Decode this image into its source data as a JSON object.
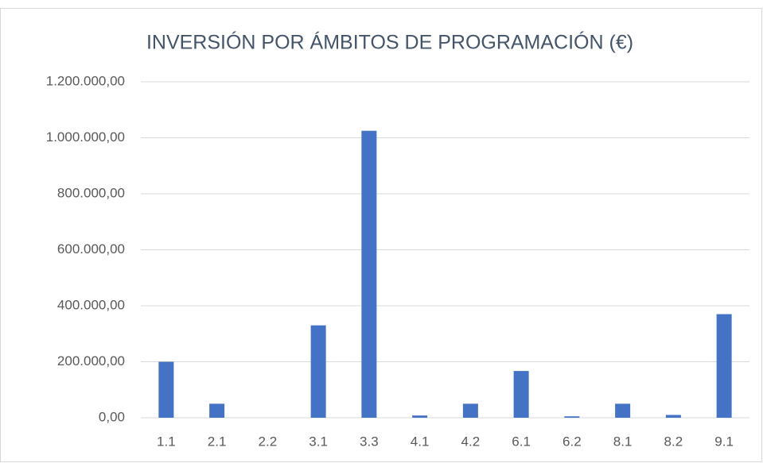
{
  "chart_data": {
    "type": "bar",
    "title": "INVERSIÓN POR ÁMBITOS DE PROGRAMACIÓN (€)",
    "categories": [
      "1.1",
      "2.1",
      "2.2",
      "3.1",
      "3.3",
      "4.1",
      "4.2",
      "6.1",
      "6.2",
      "8.1",
      "8.2",
      "9.1"
    ],
    "values": [
      200000,
      50000,
      0,
      330000,
      1025000,
      8000,
      50000,
      167000,
      5000,
      50000,
      10000,
      370000
    ],
    "color": "#4472c4",
    "ylim": [
      0,
      1200000
    ],
    "yticks": [
      {
        "value": 0,
        "label": "0,00"
      },
      {
        "value": 200000,
        "label": "200.000,00"
      },
      {
        "value": 400000,
        "label": "400.000,00"
      },
      {
        "value": 600000,
        "label": "600.000,00"
      },
      {
        "value": 800000,
        "label": "800.000,00"
      },
      {
        "value": 1000000,
        "label": "1.000.000,00"
      },
      {
        "value": 1200000,
        "label": "1.200.000,00"
      }
    ],
    "grid": true
  }
}
